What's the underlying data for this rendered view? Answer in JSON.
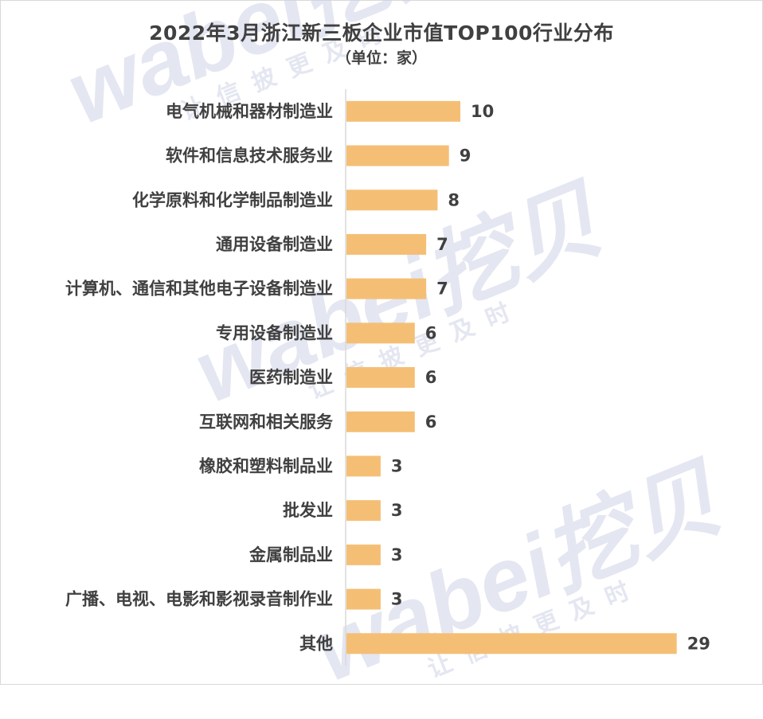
{
  "chart_data": {
    "type": "bar",
    "orientation": "horizontal",
    "title": "2022年3月浙江新三板企业市值TOP100行业分布",
    "subtitle": "（单位：家）",
    "categories": [
      "电气机械和器材制造业",
      "软件和信息技术服务业",
      "化学原料和化学制品制造业",
      "通用设备制造业",
      "计算机、通信和其他电子设备制造业",
      "专用设备制造业",
      "医药制造业",
      "互联网和相关服务",
      "橡胶和塑料制品业",
      "批发业",
      "金属制品业",
      "广播、电视、电影和影视录音制作业",
      "其他"
    ],
    "values": [
      10,
      9,
      8,
      7,
      7,
      6,
      6,
      6,
      3,
      3,
      3,
      3,
      29
    ],
    "bar_color": "#f4bf75",
    "grid": false,
    "legend": "none"
  },
  "watermark": {
    "brand": "wabei挖贝",
    "slogan": "让信披更及时",
    "color": "#ced3e7"
  }
}
